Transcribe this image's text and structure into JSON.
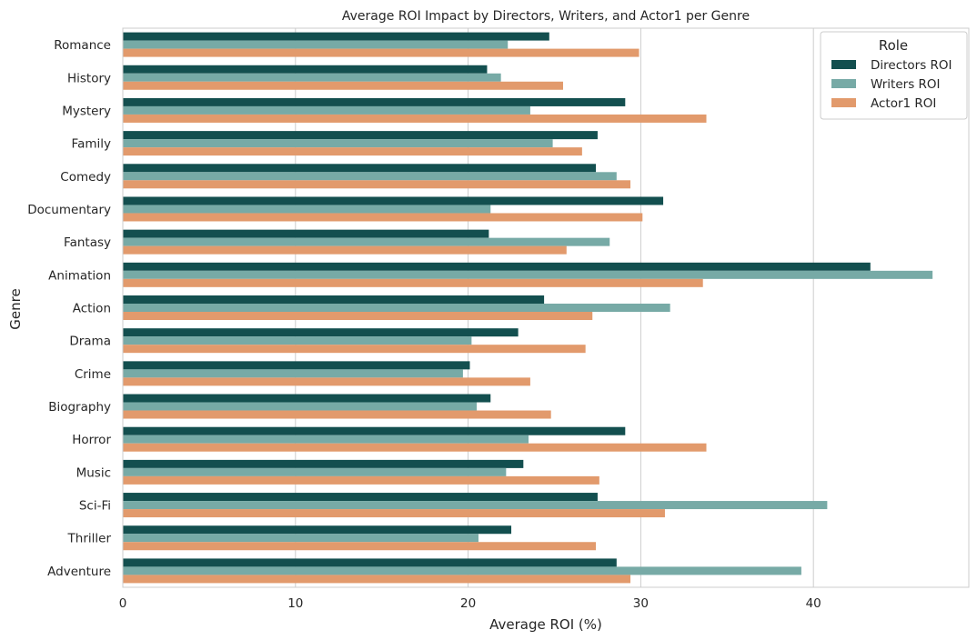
{
  "chart_data": {
    "type": "bar",
    "orientation": "horizontal",
    "title": "Average ROI Impact by Directors, Writers, and Actor1 per Genre",
    "xlabel": "Average ROI (%)",
    "ylabel": "Genre",
    "xlim": [
      0,
      49
    ],
    "xticks": [
      0,
      10,
      20,
      30,
      40
    ],
    "grid": true,
    "legend": {
      "title": "Role",
      "placement": "top-right"
    },
    "categories": [
      "Romance",
      "History",
      "Mystery",
      "Family",
      "Comedy",
      "Documentary",
      "Fantasy",
      "Animation",
      "Action",
      "Drama",
      "Crime",
      "Biography",
      "Horror",
      "Music",
      "Sci-Fi",
      "Thriller",
      "Adventure"
    ],
    "series": [
      {
        "name": "Directors ROI",
        "color": "#134f4f",
        "values": [
          24.7,
          21.1,
          29.1,
          27.5,
          27.4,
          31.3,
          21.2,
          43.3,
          24.4,
          22.9,
          20.1,
          21.3,
          29.1,
          23.2,
          27.5,
          22.5,
          28.6
        ]
      },
      {
        "name": "Writers ROI",
        "color": "#77aaa6",
        "values": [
          22.3,
          21.9,
          23.6,
          24.9,
          28.6,
          21.3,
          28.2,
          46.9,
          31.7,
          20.2,
          19.7,
          20.5,
          23.5,
          22.2,
          40.8,
          20.6,
          39.3
        ]
      },
      {
        "name": "Actor1 ROI",
        "color": "#e29a6c",
        "values": [
          29.9,
          25.5,
          33.8,
          26.6,
          29.4,
          30.1,
          25.7,
          33.6,
          27.2,
          26.8,
          23.6,
          24.8,
          33.8,
          27.6,
          31.4,
          27.4,
          29.4
        ]
      }
    ]
  }
}
